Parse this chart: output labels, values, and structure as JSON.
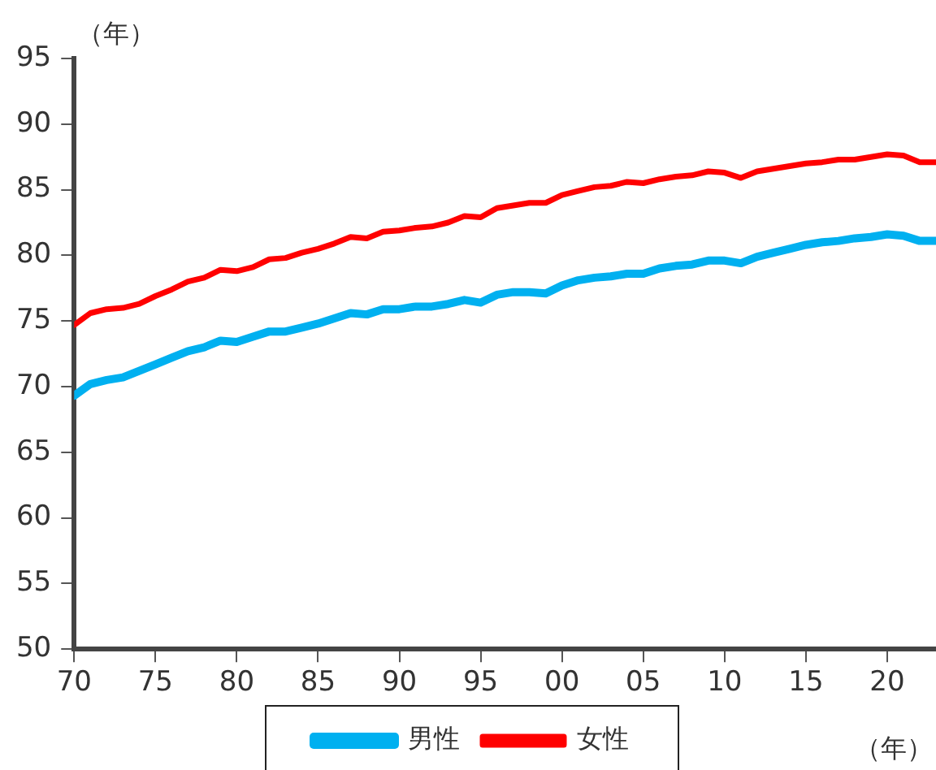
{
  "chart_data": {
    "type": "line",
    "ylabel": "（年）",
    "xlabel": "（年）",
    "x": [
      1970,
      1971,
      1972,
      1973,
      1974,
      1975,
      1976,
      1977,
      1978,
      1979,
      1980,
      1981,
      1982,
      1983,
      1984,
      1985,
      1986,
      1987,
      1988,
      1989,
      1990,
      1991,
      1992,
      1993,
      1994,
      1995,
      1996,
      1997,
      1998,
      1999,
      2000,
      2001,
      2002,
      2003,
      2004,
      2005,
      2006,
      2007,
      2008,
      2009,
      2010,
      2011,
      2012,
      2013,
      2014,
      2015,
      2016,
      2017,
      2018,
      2019,
      2020,
      2021,
      2022,
      2023
    ],
    "series": [
      {
        "name": "男性",
        "color": "#00b0f0",
        "values": [
          69.3,
          70.2,
          70.5,
          70.7,
          71.2,
          71.7,
          72.2,
          72.7,
          73.0,
          73.5,
          73.4,
          73.8,
          74.2,
          74.2,
          74.5,
          74.8,
          75.2,
          75.6,
          75.5,
          75.9,
          75.9,
          76.1,
          76.1,
          76.3,
          76.6,
          76.4,
          77.0,
          77.2,
          77.2,
          77.1,
          77.7,
          78.1,
          78.3,
          78.4,
          78.6,
          78.6,
          79.0,
          79.2,
          79.3,
          79.6,
          79.6,
          79.4,
          79.9,
          80.2,
          80.5,
          80.8,
          81.0,
          81.1,
          81.3,
          81.4,
          81.6,
          81.5,
          81.1,
          81.1
        ]
      },
      {
        "name": "女性",
        "color": "#ff0000",
        "values": [
          74.7,
          75.6,
          75.9,
          76.0,
          76.3,
          76.9,
          77.4,
          78.0,
          78.3,
          78.9,
          78.8,
          79.1,
          79.7,
          79.8,
          80.2,
          80.5,
          80.9,
          81.4,
          81.3,
          81.8,
          81.9,
          82.1,
          82.2,
          82.5,
          83.0,
          82.9,
          83.6,
          83.8,
          84.0,
          84.0,
          84.6,
          84.9,
          85.2,
          85.3,
          85.6,
          85.5,
          85.8,
          86.0,
          86.1,
          86.4,
          86.3,
          85.9,
          86.4,
          86.6,
          86.8,
          87.0,
          87.1,
          87.3,
          87.3,
          87.5,
          87.7,
          87.6,
          87.1,
          87.1
        ]
      }
    ],
    "xlim": [
      1970,
      2023
    ],
    "xticks": [
      {
        "value": 1970,
        "label": "70"
      },
      {
        "value": 1975,
        "label": "75"
      },
      {
        "value": 1980,
        "label": "80"
      },
      {
        "value": 1985,
        "label": "85"
      },
      {
        "value": 1990,
        "label": "90"
      },
      {
        "value": 1995,
        "label": "95"
      },
      {
        "value": 2000,
        "label": "00"
      },
      {
        "value": 2005,
        "label": "05"
      },
      {
        "value": 2010,
        "label": "10"
      },
      {
        "value": 2015,
        "label": "15"
      },
      {
        "value": 2020,
        "label": "20"
      }
    ],
    "ylim": [
      50,
      95
    ],
    "yticks": [
      50,
      55,
      60,
      65,
      70,
      75,
      80,
      85,
      90,
      95
    ],
    "grid": false,
    "legend": "bottom",
    "marker": "none",
    "line_style": "solid"
  }
}
